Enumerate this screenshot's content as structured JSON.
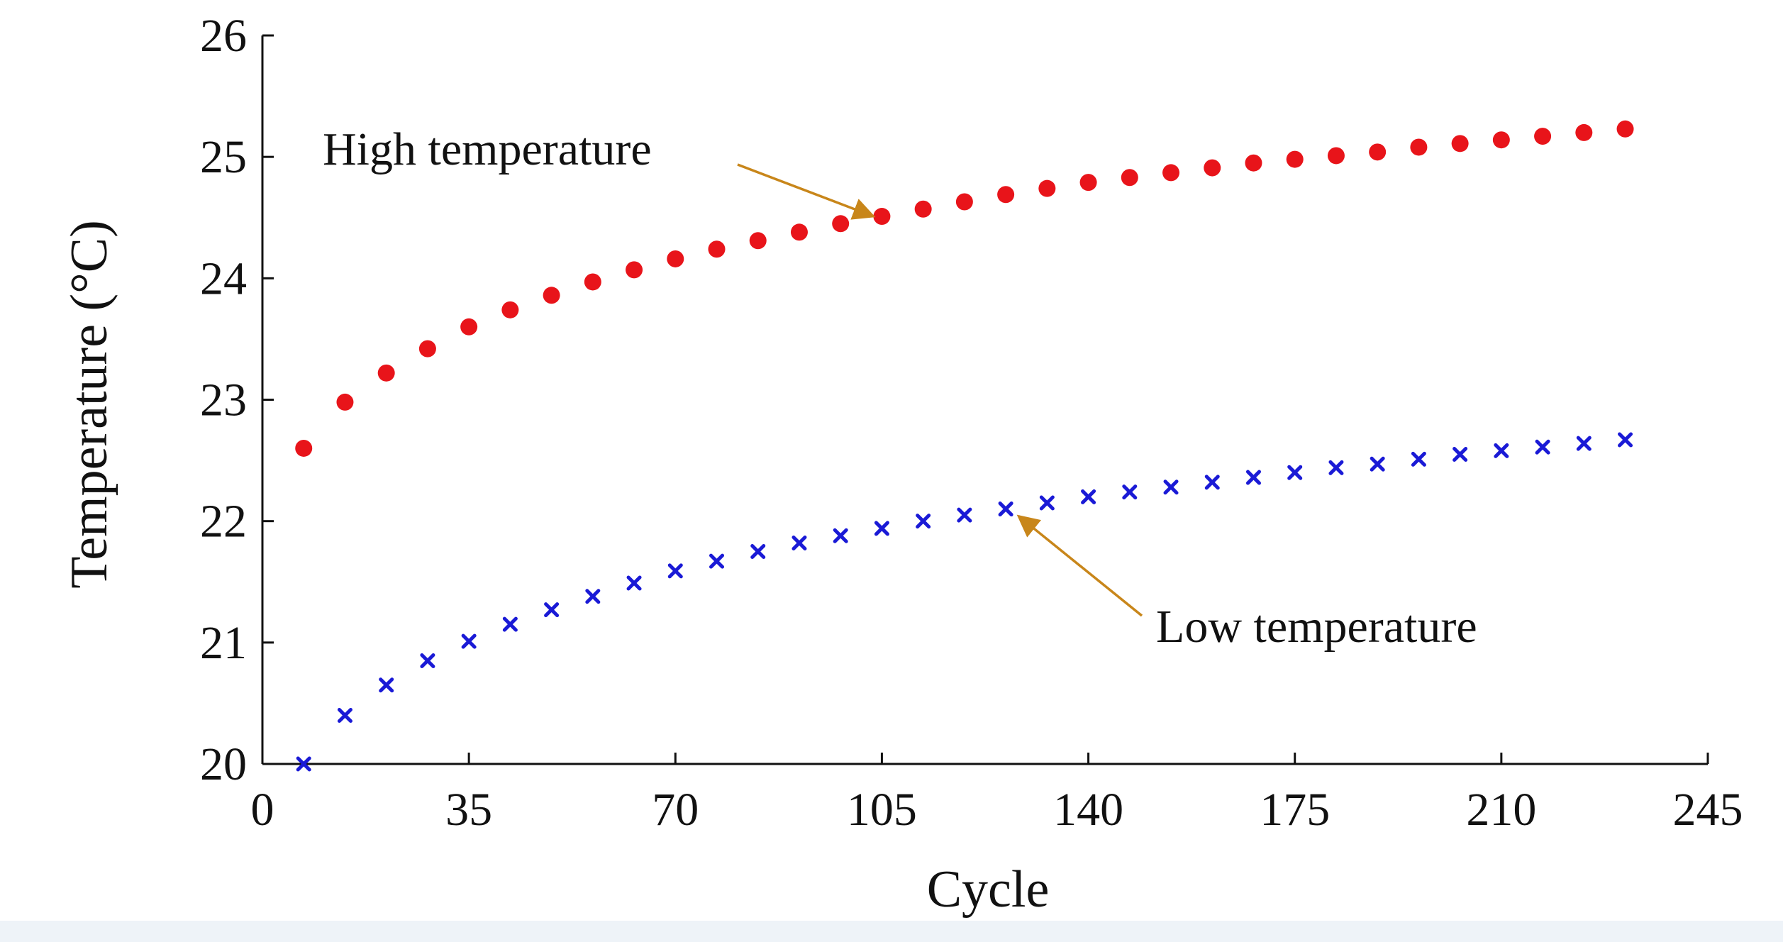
{
  "chart_data": {
    "type": "scatter",
    "title": "",
    "xlabel": "Cycle",
    "ylabel": "Temperature (°C)",
    "xlim": [
      0,
      245
    ],
    "ylim": [
      20,
      26
    ],
    "xticks": [
      0,
      35,
      70,
      105,
      140,
      175,
      210,
      245
    ],
    "yticks": [
      20,
      21,
      22,
      23,
      24,
      25,
      26
    ],
    "x": [
      7,
      14,
      21,
      28,
      35,
      42,
      49,
      56,
      63,
      70,
      77,
      84,
      91,
      98,
      105,
      112,
      119,
      126,
      133,
      140,
      147,
      154,
      161,
      168,
      175,
      182,
      189,
      196,
      203,
      210,
      217,
      224,
      231
    ],
    "series": [
      {
        "name": "High temperature",
        "marker": "circle",
        "color": "#e8141a",
        "values": [
          22.6,
          22.98,
          23.22,
          23.42,
          23.6,
          23.74,
          23.86,
          23.97,
          24.07,
          24.16,
          24.24,
          24.31,
          24.38,
          24.45,
          24.51,
          24.57,
          24.63,
          24.69,
          24.74,
          24.79,
          24.83,
          24.87,
          24.91,
          24.95,
          24.98,
          25.01,
          25.04,
          25.08,
          25.11,
          25.14,
          25.17,
          25.2,
          25.23
        ]
      },
      {
        "name": "Low temperature",
        "marker": "x",
        "color": "#1a1ad6",
        "values": [
          20.0,
          20.4,
          20.65,
          20.85,
          21.01,
          21.15,
          21.27,
          21.38,
          21.49,
          21.59,
          21.67,
          21.75,
          21.82,
          21.88,
          21.94,
          22.0,
          22.05,
          22.1,
          22.15,
          22.2,
          22.24,
          22.28,
          22.32,
          22.36,
          22.4,
          22.44,
          22.47,
          22.51,
          22.55,
          22.58,
          22.61,
          22.64,
          22.67
        ]
      }
    ],
    "annotations": [
      {
        "text": "High temperature",
        "target": {
          "x": 105,
          "y": 24.51
        }
      },
      {
        "text": "Low temperature",
        "target": {
          "x": 126,
          "y": 22.1
        }
      }
    ],
    "arrow_color": "#c8861a",
    "grid": false
  }
}
